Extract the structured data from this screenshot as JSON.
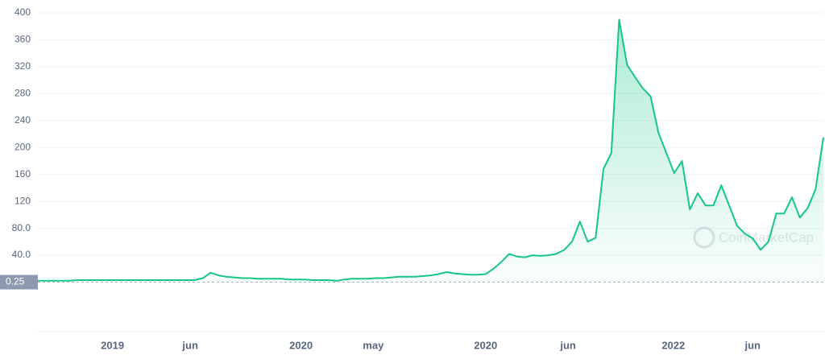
{
  "chart_data": {
    "type": "line",
    "price_label": "0.25",
    "watermark": "CoinMarketCap",
    "x": [
      0,
      1,
      2,
      3,
      4,
      5,
      6,
      7,
      8,
      9,
      10,
      11,
      12,
      13,
      14,
      15,
      16,
      17,
      18,
      19,
      20,
      21,
      22,
      23,
      24,
      25,
      26,
      27,
      28,
      29,
      30,
      31,
      32,
      33,
      34,
      35,
      36,
      37,
      38,
      39,
      40,
      41,
      42,
      43,
      44,
      45,
      46,
      47,
      48,
      49,
      50,
      51,
      52,
      53,
      54,
      55,
      56,
      57,
      58,
      59,
      60,
      61,
      62,
      63,
      64,
      65,
      66,
      67,
      68,
      69,
      70,
      71,
      72,
      73,
      74,
      75,
      76,
      77,
      78,
      79,
      80,
      81,
      82,
      83,
      84,
      85,
      86,
      87,
      88,
      89,
      90,
      91,
      92,
      93,
      94,
      95,
      96,
      97,
      98,
      99,
      100
    ],
    "series": [
      {
        "color": "#16c784",
        "values": [
          2,
          2,
          2,
          2,
          2,
          3,
          3,
          3,
          3,
          3,
          3,
          3,
          3,
          3,
          3,
          3,
          3,
          3,
          3,
          3,
          3,
          6,
          14,
          10,
          8,
          7,
          6,
          6,
          5,
          5,
          5,
          5,
          4,
          4,
          4,
          3,
          3,
          3,
          2,
          4,
          5,
          5,
          5,
          6,
          6,
          7,
          8,
          8,
          8,
          9,
          10,
          12,
          15,
          13,
          12,
          11,
          11,
          12,
          20,
          30,
          42,
          38,
          37,
          40,
          39,
          40,
          42,
          48,
          60,
          90,
          60,
          66,
          168,
          192,
          390,
          323,
          305,
          288,
          276,
          222,
          192,
          162,
          180,
          108,
          132,
          114,
          114,
          144,
          114,
          84,
          72,
          65,
          48,
          60,
          102,
          102,
          126,
          96,
          110,
          138,
          215
        ]
      }
    ],
    "xlim": [
      0,
      100
    ],
    "xticks": [
      {
        "value": 9.5,
        "label": "2019"
      },
      {
        "value": 19.4,
        "label": "jun"
      },
      {
        "value": 33.5,
        "label": "2020"
      },
      {
        "value": 42.7,
        "label": "may"
      },
      {
        "value": 57.0,
        "label": "2020"
      },
      {
        "value": 67.5,
        "label": "jun"
      },
      {
        "value": 80.9,
        "label": "2022"
      },
      {
        "value": 91.0,
        "label": "jun"
      }
    ],
    "ylim": [
      0,
      400
    ],
    "yticks": [
      {
        "value": 40,
        "label": "40.0"
      },
      {
        "value": 80,
        "label": "80.0"
      },
      120,
      160,
      200,
      240,
      280,
      320,
      360,
      400
    ],
    "grid": true
  }
}
